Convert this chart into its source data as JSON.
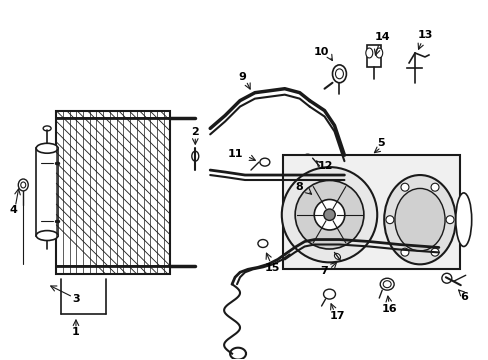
{
  "bg_color": "#ffffff",
  "line_color": "#1a1a1a",
  "fig_width": 4.89,
  "fig_height": 3.6,
  "dpi": 100,
  "font_size": 8,
  "font_weight": "bold",
  "gray": "#888888",
  "lgray": "#cccccc"
}
